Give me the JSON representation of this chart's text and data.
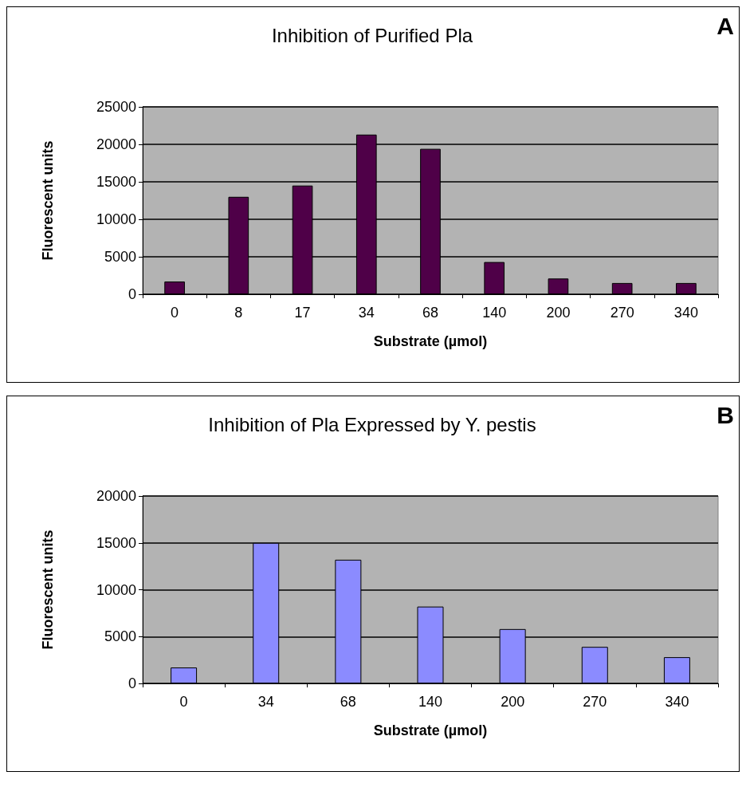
{
  "chart_data": [
    {
      "type": "bar",
      "title": "Inhibition of Purified Pla",
      "xlabel": "Substrate (µmol)",
      "ylabel": "Fluorescent units",
      "annotations": [
        "A"
      ],
      "categories": [
        "0",
        "8",
        "17",
        "34",
        "68",
        "140",
        "200",
        "270",
        "340"
      ],
      "values": [
        1700,
        13000,
        14500,
        21300,
        19400,
        4300,
        2100,
        1500,
        1500
      ],
      "color": "#4f0048",
      "ylim": [
        0,
        25000
      ],
      "yticks": [
        0,
        5000,
        10000,
        15000,
        20000,
        25000
      ],
      "grid": "y"
    },
    {
      "type": "bar",
      "title": "Inhibition of Pla Expressed by Y. pestis",
      "xlabel": "Substrate (µmol)",
      "ylabel": "Fluorescent units",
      "annotations": [
        "B"
      ],
      "categories": [
        "0",
        "34",
        "68",
        "140",
        "200",
        "270",
        "340"
      ],
      "values": [
        1700,
        15000,
        13200,
        8200,
        5800,
        3900,
        2800
      ],
      "color": "#8b8bff",
      "ylim": [
        0,
        20000
      ],
      "yticks": [
        0,
        5000,
        10000,
        15000,
        20000
      ],
      "grid": "y"
    }
  ]
}
